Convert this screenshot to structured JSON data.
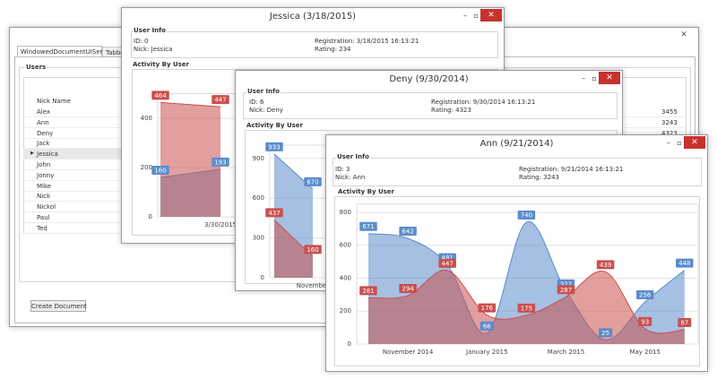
{
  "main_window": {
    "tabs": [
      "WindowedDocumentUIService",
      "Tabbe"
    ],
    "users_header": "Users",
    "column_header": "Nick Name",
    "rows": [
      "Alex",
      "Ann",
      "Deny",
      "Jack",
      "Jessica",
      "John",
      "Jonny",
      "Mike",
      "Nick",
      "Nickol",
      "Paul",
      "Ted"
    ],
    "ratings": [
      3455,
      3243,
      4323
    ],
    "button": "Create Document"
  },
  "windows": [
    {
      "title": "Jessica (3/18/2015)",
      "user_info": "User Info",
      "id": "ID: 0",
      "nick": "Nick: Jessica",
      "registration": "Registration: 3/18/2015 16:13:21",
      "rating": "Rating: 234",
      "activity": "Activity By User"
    },
    {
      "title": "Deny (9/30/2014)",
      "user_info": "User Info",
      "id": "ID: 6",
      "nick": "Nick: Deny",
      "registration": "Registration: 9/30/2014 16:13:21",
      "rating": "Rating: 4323",
      "activity": "Activity By User"
    },
    {
      "title": "Ann (9/21/2014)",
      "user_info": "User Info",
      "id": "ID: 3",
      "nick": "Nick: Ann",
      "registration": "Registration: 9/21/2014 16:13:21",
      "rating": "Rating: 3243",
      "activity": "Activity By User"
    }
  ],
  "chart_data": [
    {
      "type": "area",
      "categories": [
        null,
        "3/30/2015"
      ],
      "ylim": [
        0,
        500
      ],
      "yticks": [
        0,
        200,
        400
      ],
      "grid": true,
      "series": [
        {
          "color": "#5b8ccb",
          "values": [
            160,
            193
          ]
        },
        {
          "color": "#c9504f",
          "values": [
            464,
            447
          ]
        }
      ]
    },
    {
      "type": "area",
      "categories": [
        null,
        "November"
      ],
      "ylim": [
        0,
        1000
      ],
      "yticks": [
        0,
        300,
        600,
        900
      ],
      "grid": true,
      "series": [
        {
          "color": "#5b8ccb",
          "values": [
            933,
            670
          ]
        },
        {
          "color": "#c9504f",
          "values": [
            437,
            160
          ]
        }
      ]
    },
    {
      "type": "area",
      "categories": [
        null,
        "November 2014",
        null,
        "January 2015",
        null,
        "March 2015",
        null,
        "May 2015",
        null
      ],
      "ylim": [
        0,
        850
      ],
      "yticks": [
        0,
        200,
        400,
        600,
        800
      ],
      "grid": true,
      "series": [
        {
          "color": "#5b8ccb",
          "values": [
            671,
            642,
            481,
            66,
            740,
            322,
            25,
            256,
            448
          ]
        },
        {
          "color": "#c9504f",
          "values": [
            281,
            294,
            447,
            176,
            175,
            287,
            439,
            93,
            87
          ]
        }
      ]
    }
  ]
}
